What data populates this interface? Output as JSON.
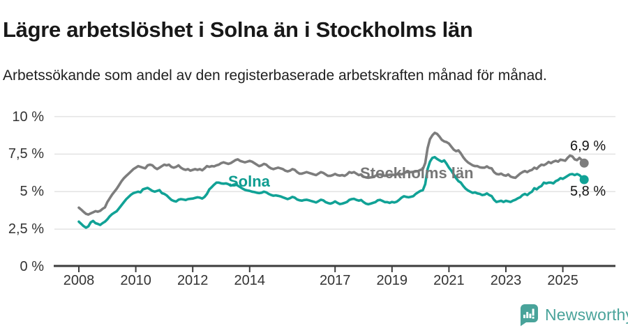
{
  "header": {
    "title": "Lägre arbetslöshet i Solna än i Stockholms län",
    "subtitle": "Arbetssökande som andel av den registerbaserade arbetskraften månad för månad."
  },
  "chart_data": {
    "type": "line",
    "unit": "%",
    "frequency": "monthly",
    "x_start": "2008-01",
    "x_end": "2025-10",
    "grid": true,
    "ylim": [
      0,
      10
    ],
    "y_tick_values": [
      0,
      2.5,
      5,
      7.5,
      10
    ],
    "y_tick_labels": [
      "0 %",
      "2,5 %",
      "5 %",
      "7,5 %",
      "10 %"
    ],
    "x_tick_years": [
      2008,
      2010,
      2012,
      2014,
      2017,
      2019,
      2021,
      2023,
      2025
    ],
    "x_tick_labels": [
      "2008",
      "2010",
      "2012",
      "2014",
      "2017",
      "2019",
      "2021",
      "2023",
      "2025"
    ],
    "axis_color": "#3c3c3c",
    "grid_color": "#e3e3e3",
    "series": [
      {
        "name": "Stockholms län",
        "color": "#7d7d7d",
        "end_label": "6,9 %",
        "end_value": 6.9,
        "values": [
          3.93,
          3.8,
          3.65,
          3.52,
          3.47,
          3.55,
          3.62,
          3.7,
          3.66,
          3.72,
          3.85,
          3.95,
          4.3,
          4.55,
          4.8,
          5.0,
          5.2,
          5.45,
          5.7,
          5.9,
          6.05,
          6.2,
          6.35,
          6.5,
          6.6,
          6.7,
          6.65,
          6.6,
          6.55,
          6.75,
          6.8,
          6.75,
          6.6,
          6.5,
          6.6,
          6.7,
          6.8,
          6.75,
          6.8,
          6.65,
          6.6,
          6.65,
          6.75,
          6.6,
          6.5,
          6.45,
          6.5,
          6.4,
          6.45,
          6.5,
          6.45,
          6.5,
          6.42,
          6.55,
          6.7,
          6.65,
          6.7,
          6.68,
          6.75,
          6.8,
          6.9,
          6.95,
          6.9,
          6.85,
          6.9,
          7.0,
          7.1,
          7.15,
          7.05,
          7.0,
          6.95,
          7.0,
          7.05,
          7.0,
          6.9,
          6.8,
          6.7,
          6.75,
          6.85,
          6.8,
          6.65,
          6.55,
          6.5,
          6.55,
          6.6,
          6.55,
          6.5,
          6.4,
          6.35,
          6.4,
          6.5,
          6.45,
          6.3,
          6.2,
          6.2,
          6.25,
          6.3,
          6.25,
          6.2,
          6.15,
          6.1,
          6.2,
          6.3,
          6.25,
          6.15,
          6.05,
          6.05,
          6.1,
          6.18,
          6.1,
          6.07,
          6.1,
          6.05,
          6.15,
          6.3,
          6.25,
          6.3,
          6.2,
          6.1,
          6.15,
          6.0,
          5.95,
          5.92,
          5.95,
          5.97,
          6.05,
          6.15,
          6.15,
          6.1,
          6.05,
          6.1,
          6.12,
          6.15,
          6.1,
          6.15,
          6.2,
          6.15,
          6.22,
          6.3,
          6.3,
          6.3,
          6.32,
          6.35,
          6.37,
          6.45,
          6.5,
          6.9,
          7.9,
          8.5,
          8.75,
          8.92,
          8.85,
          8.67,
          8.45,
          8.35,
          8.3,
          8.2,
          8.0,
          7.8,
          7.7,
          7.75,
          7.55,
          7.3,
          7.1,
          6.95,
          6.85,
          6.75,
          6.7,
          6.7,
          6.62,
          6.6,
          6.6,
          6.68,
          6.58,
          6.55,
          6.3,
          6.18,
          6.15,
          6.2,
          6.1,
          6.06,
          6.15,
          6.0,
          5.95,
          5.92,
          6.06,
          6.2,
          6.3,
          6.37,
          6.3,
          6.4,
          6.45,
          6.6,
          6.52,
          6.68,
          6.8,
          6.76,
          6.85,
          6.98,
          6.9,
          7.0,
          7.06,
          7.0,
          7.13,
          7.1,
          7.06,
          7.25,
          7.4,
          7.35,
          7.15,
          7.1,
          7.25,
          7.1,
          6.9
        ]
      },
      {
        "name": "Solna",
        "color": "#11a296",
        "end_label": "5,8 %",
        "end_value": 5.8,
        "values": [
          3.0,
          2.85,
          2.7,
          2.6,
          2.68,
          2.95,
          3.05,
          2.9,
          2.85,
          2.78,
          2.9,
          3.0,
          3.15,
          3.35,
          3.5,
          3.6,
          3.7,
          3.9,
          4.1,
          4.3,
          4.5,
          4.65,
          4.8,
          4.9,
          4.95,
          5.0,
          4.95,
          5.15,
          5.2,
          5.25,
          5.15,
          5.05,
          5.0,
          5.05,
          5.1,
          4.9,
          4.85,
          4.75,
          4.6,
          4.45,
          4.38,
          4.34,
          4.46,
          4.5,
          4.48,
          4.44,
          4.5,
          4.52,
          4.54,
          4.58,
          4.62,
          4.6,
          4.54,
          4.65,
          4.85,
          5.15,
          5.3,
          5.46,
          5.6,
          5.6,
          5.55,
          5.53,
          5.55,
          5.5,
          5.4,
          5.45,
          5.5,
          5.4,
          5.3,
          5.2,
          5.12,
          5.08,
          5.05,
          5.0,
          4.97,
          4.93,
          4.9,
          4.93,
          5.0,
          4.95,
          4.85,
          4.78,
          4.73,
          4.75,
          4.72,
          4.68,
          4.62,
          4.56,
          4.5,
          4.56,
          4.65,
          4.6,
          4.48,
          4.42,
          4.4,
          4.44,
          4.46,
          4.42,
          4.37,
          4.33,
          4.28,
          4.36,
          4.46,
          4.42,
          4.3,
          4.24,
          4.2,
          4.25,
          4.35,
          4.25,
          4.17,
          4.2,
          4.25,
          4.31,
          4.45,
          4.5,
          4.52,
          4.45,
          4.4,
          4.44,
          4.3,
          4.2,
          4.16,
          4.2,
          4.25,
          4.3,
          4.42,
          4.45,
          4.38,
          4.3,
          4.3,
          4.25,
          4.31,
          4.28,
          4.33,
          4.45,
          4.6,
          4.69,
          4.65,
          4.62,
          4.66,
          4.7,
          4.85,
          4.95,
          5.05,
          5.1,
          5.5,
          6.5,
          7.0,
          7.25,
          7.3,
          7.18,
          7.08,
          7.0,
          7.08,
          6.86,
          6.6,
          6.4,
          6.15,
          5.9,
          5.7,
          5.6,
          5.38,
          5.2,
          5.08,
          5.0,
          4.92,
          4.95,
          4.88,
          4.85,
          4.77,
          4.8,
          4.88,
          4.77,
          4.7,
          4.46,
          4.31,
          4.35,
          4.39,
          4.31,
          4.39,
          4.35,
          4.31,
          4.4,
          4.46,
          4.55,
          4.62,
          4.77,
          4.85,
          4.77,
          4.9,
          5.0,
          5.23,
          5.15,
          5.3,
          5.38,
          5.6,
          5.55,
          5.6,
          5.6,
          5.55,
          5.7,
          5.77,
          5.9,
          5.85,
          5.95,
          6.05,
          6.15,
          6.17,
          6.1,
          6.17,
          6.1,
          5.95,
          5.8
        ]
      }
    ]
  },
  "footer": {
    "brand_name": "Newsworthy",
    "brand_color": "#49a39a",
    "logo_icon": "bar-chart-exclamation-bubble-icon"
  }
}
